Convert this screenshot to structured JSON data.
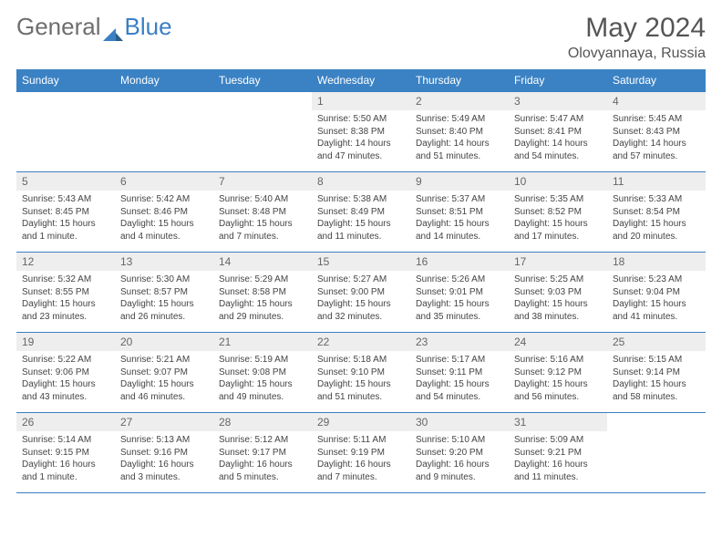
{
  "logo": {
    "text1": "General",
    "text2": "Blue"
  },
  "title": "May 2024",
  "location": "Olovyannaya, Russia",
  "weekdays": [
    "Sunday",
    "Monday",
    "Tuesday",
    "Wednesday",
    "Thursday",
    "Friday",
    "Saturday"
  ],
  "colors": {
    "header_bg": "#3b82c4",
    "header_text": "#ffffff",
    "daynum_bg": "#eeeeee",
    "border": "#3b7fc4",
    "body_text": "#444444",
    "title_text": "#555555"
  },
  "weeks": [
    [
      null,
      null,
      null,
      {
        "n": "1",
        "sr": "5:50 AM",
        "ss": "8:38 PM",
        "dl": "14 hours and 47 minutes."
      },
      {
        "n": "2",
        "sr": "5:49 AM",
        "ss": "8:40 PM",
        "dl": "14 hours and 51 minutes."
      },
      {
        "n": "3",
        "sr": "5:47 AM",
        "ss": "8:41 PM",
        "dl": "14 hours and 54 minutes."
      },
      {
        "n": "4",
        "sr": "5:45 AM",
        "ss": "8:43 PM",
        "dl": "14 hours and 57 minutes."
      }
    ],
    [
      {
        "n": "5",
        "sr": "5:43 AM",
        "ss": "8:45 PM",
        "dl": "15 hours and 1 minute."
      },
      {
        "n": "6",
        "sr": "5:42 AM",
        "ss": "8:46 PM",
        "dl": "15 hours and 4 minutes."
      },
      {
        "n": "7",
        "sr": "5:40 AM",
        "ss": "8:48 PM",
        "dl": "15 hours and 7 minutes."
      },
      {
        "n": "8",
        "sr": "5:38 AM",
        "ss": "8:49 PM",
        "dl": "15 hours and 11 minutes."
      },
      {
        "n": "9",
        "sr": "5:37 AM",
        "ss": "8:51 PM",
        "dl": "15 hours and 14 minutes."
      },
      {
        "n": "10",
        "sr": "5:35 AM",
        "ss": "8:52 PM",
        "dl": "15 hours and 17 minutes."
      },
      {
        "n": "11",
        "sr": "5:33 AM",
        "ss": "8:54 PM",
        "dl": "15 hours and 20 minutes."
      }
    ],
    [
      {
        "n": "12",
        "sr": "5:32 AM",
        "ss": "8:55 PM",
        "dl": "15 hours and 23 minutes."
      },
      {
        "n": "13",
        "sr": "5:30 AM",
        "ss": "8:57 PM",
        "dl": "15 hours and 26 minutes."
      },
      {
        "n": "14",
        "sr": "5:29 AM",
        "ss": "8:58 PM",
        "dl": "15 hours and 29 minutes."
      },
      {
        "n": "15",
        "sr": "5:27 AM",
        "ss": "9:00 PM",
        "dl": "15 hours and 32 minutes."
      },
      {
        "n": "16",
        "sr": "5:26 AM",
        "ss": "9:01 PM",
        "dl": "15 hours and 35 minutes."
      },
      {
        "n": "17",
        "sr": "5:25 AM",
        "ss": "9:03 PM",
        "dl": "15 hours and 38 minutes."
      },
      {
        "n": "18",
        "sr": "5:23 AM",
        "ss": "9:04 PM",
        "dl": "15 hours and 41 minutes."
      }
    ],
    [
      {
        "n": "19",
        "sr": "5:22 AM",
        "ss": "9:06 PM",
        "dl": "15 hours and 43 minutes."
      },
      {
        "n": "20",
        "sr": "5:21 AM",
        "ss": "9:07 PM",
        "dl": "15 hours and 46 minutes."
      },
      {
        "n": "21",
        "sr": "5:19 AM",
        "ss": "9:08 PM",
        "dl": "15 hours and 49 minutes."
      },
      {
        "n": "22",
        "sr": "5:18 AM",
        "ss": "9:10 PM",
        "dl": "15 hours and 51 minutes."
      },
      {
        "n": "23",
        "sr": "5:17 AM",
        "ss": "9:11 PM",
        "dl": "15 hours and 54 minutes."
      },
      {
        "n": "24",
        "sr": "5:16 AM",
        "ss": "9:12 PM",
        "dl": "15 hours and 56 minutes."
      },
      {
        "n": "25",
        "sr": "5:15 AM",
        "ss": "9:14 PM",
        "dl": "15 hours and 58 minutes."
      }
    ],
    [
      {
        "n": "26",
        "sr": "5:14 AM",
        "ss": "9:15 PM",
        "dl": "16 hours and 1 minute."
      },
      {
        "n": "27",
        "sr": "5:13 AM",
        "ss": "9:16 PM",
        "dl": "16 hours and 3 minutes."
      },
      {
        "n": "28",
        "sr": "5:12 AM",
        "ss": "9:17 PM",
        "dl": "16 hours and 5 minutes."
      },
      {
        "n": "29",
        "sr": "5:11 AM",
        "ss": "9:19 PM",
        "dl": "16 hours and 7 minutes."
      },
      {
        "n": "30",
        "sr": "5:10 AM",
        "ss": "9:20 PM",
        "dl": "16 hours and 9 minutes."
      },
      {
        "n": "31",
        "sr": "5:09 AM",
        "ss": "9:21 PM",
        "dl": "16 hours and 11 minutes."
      },
      null
    ]
  ],
  "labels": {
    "sunrise": "Sunrise:",
    "sunset": "Sunset:",
    "daylight": "Daylight:"
  }
}
